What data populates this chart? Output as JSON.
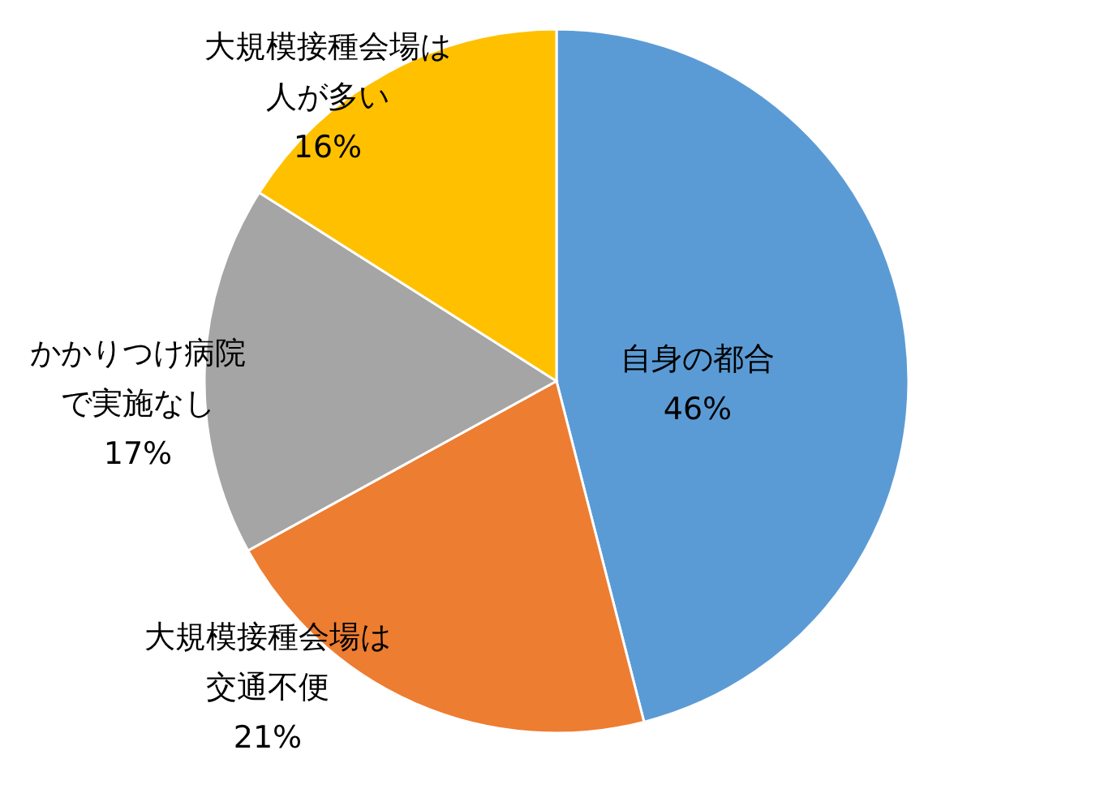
{
  "chart_data": {
    "type": "pie",
    "categories": [
      "自身の都合",
      "大規模接種会場は交通不便",
      "かかりつけ病院で実施なし",
      "大規模接種会場は人が多い"
    ],
    "values": [
      46,
      21,
      17,
      16
    ],
    "value_labels": [
      "46%",
      "21%",
      "17%",
      "16%"
    ],
    "colors": [
      "#5b9bd5",
      "#ed7d31",
      "#a5a5a5",
      "#ffc000"
    ]
  }
}
